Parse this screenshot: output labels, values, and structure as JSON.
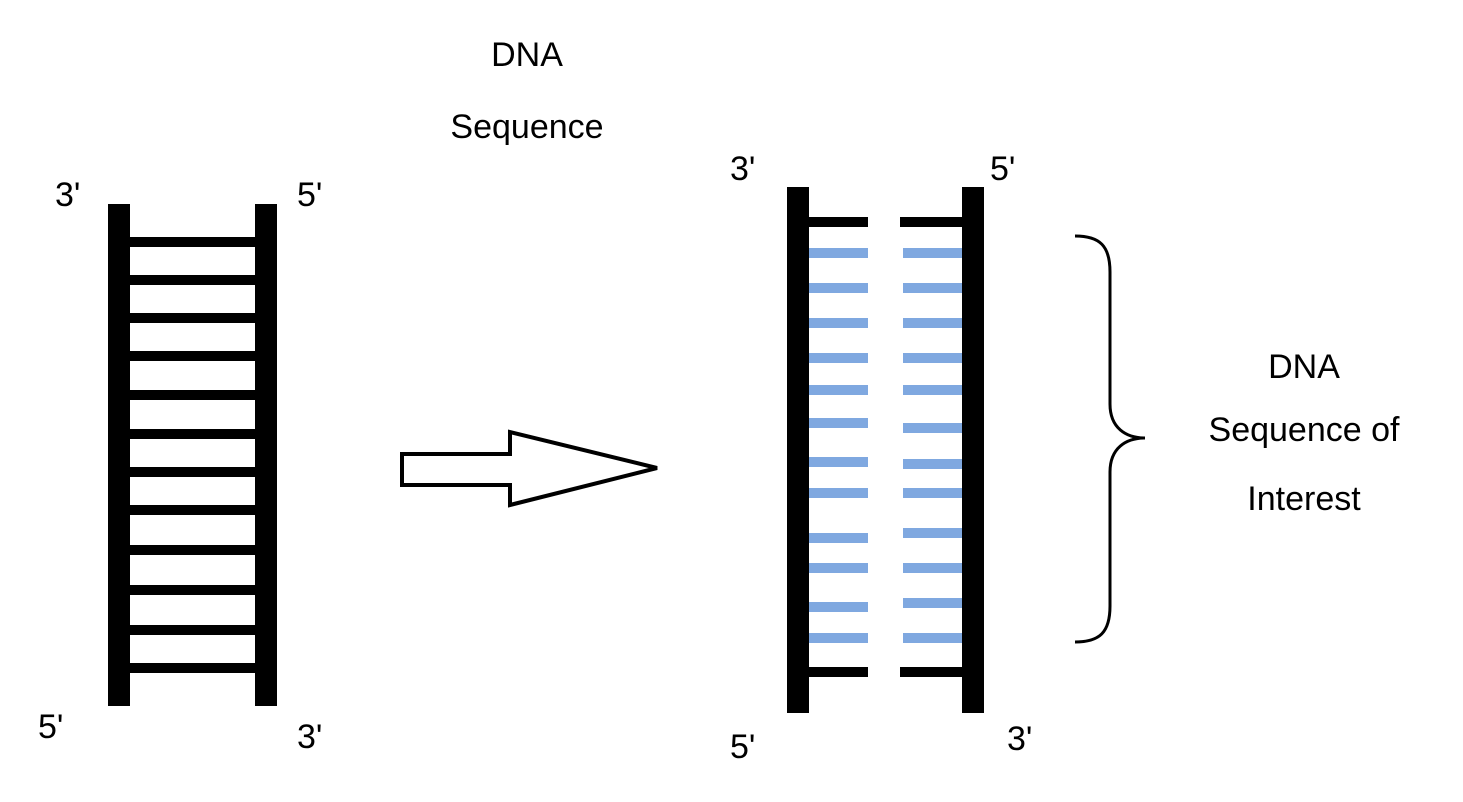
{
  "left_strand": {
    "top_left_label": "3'",
    "top_right_label": "5'",
    "bottom_left_label": "5'",
    "bottom_right_label": "3'",
    "rung_count": 12
  },
  "arrow_label": {
    "line1": "DNA",
    "line2": "Sequence"
  },
  "right_strand": {
    "top_left_label": "3'",
    "top_right_label": "5'",
    "bottom_left_label": "5'",
    "bottom_right_label": "3'",
    "highlighted_rung_count": 12,
    "highlight_color": "#7fa8e0",
    "strand_color": "#000000"
  },
  "brace_label": {
    "line1": "DNA",
    "line2": "Sequence of",
    "line3": "Interest"
  }
}
